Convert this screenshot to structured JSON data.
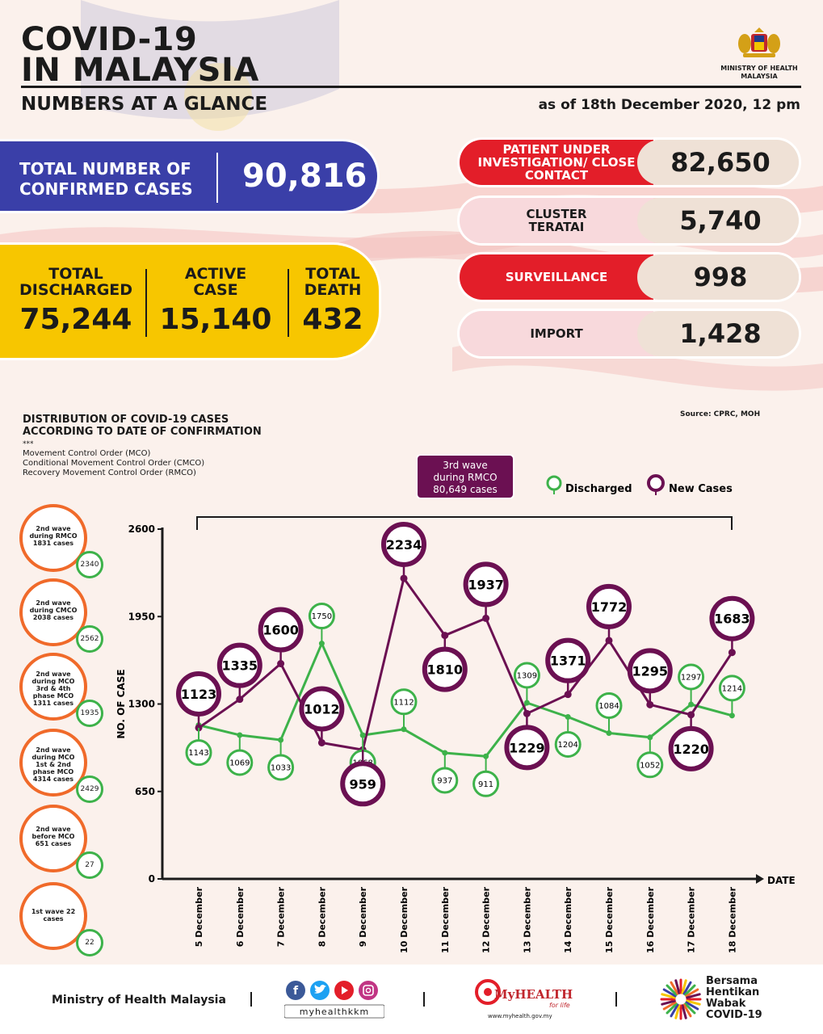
{
  "header": {
    "title_line1": "COVID-19",
    "title_line2": "IN MALAYSIA",
    "subtitle": "NUMBERS AT A GLANCE",
    "as_of": "as of 18th December 2020, 12 pm",
    "ministry_line1": "MINISTRY OF HEALTH",
    "ministry_line2": "MALAYSIA"
  },
  "totals": {
    "confirmed_label_line1": "TOTAL NUMBER OF",
    "confirmed_label_line2": "CONFIRMED CASES",
    "confirmed_value": "90,816",
    "discharged_label_line1": "TOTAL",
    "discharged_label_line2": "DISCHARGED",
    "discharged_value": "75,244",
    "active_label_line1": "ACTIVE",
    "active_label_line2": "CASE",
    "active_value": "15,140",
    "death_label_line1": "TOTAL",
    "death_label_line2": "DEATH",
    "death_value": "432"
  },
  "categories": [
    {
      "label": "PATIENT UNDER INVESTIGATION/ CLOSE CONTACT",
      "value": "82,650",
      "style": "red"
    },
    {
      "label": "CLUSTER TERATAI",
      "value": "5,740",
      "style": "pink"
    },
    {
      "label": "SURVEILLANCE",
      "value": "998",
      "style": "red"
    },
    {
      "label": "IMPORT",
      "value": "1,428",
      "style": "pink"
    }
  ],
  "chart_info": {
    "title_line1": "DISTRIBUTION OF COVID-19 CASES",
    "title_line2": "ACCORDING TO DATE OF CONFIRMATION",
    "stars": "***",
    "mco": "Movement Control Order (MCO)",
    "cmco": "Conditional Movement Control Order (CMCO)",
    "rmco": "Recovery Movement Control Order (RMCO)",
    "source": "Source: CPRC, MOH",
    "wave_line1": "3rd wave",
    "wave_line2": "during RMCO",
    "wave_line3": "80,649 cases"
  },
  "waves": [
    {
      "text": "2nd wave during RMCO 1831 cases",
      "value": "2340"
    },
    {
      "text": "2nd wave during CMCO 2038 cases",
      "value": "2562"
    },
    {
      "text": "2nd wave during MCO 3rd & 4th phase MCO 1311 cases",
      "value": "1935"
    },
    {
      "text": "2nd wave during MCO 1st & 2nd phase MCO 4314 cases",
      "value": "2429"
    },
    {
      "text": "2nd wave before MCO 651 cases",
      "value": "27"
    },
    {
      "text": "1st wave 22 cases",
      "value": "22"
    }
  ],
  "chart_data": {
    "type": "line",
    "x": [
      "5 December",
      "6 December",
      "7 December",
      "8 December",
      "9 December",
      "10 December",
      "11 December",
      "12 December",
      "13 December",
      "14 December",
      "15 December",
      "16 December",
      "17 December",
      "18 December"
    ],
    "series": [
      {
        "name": "Discharged",
        "color": "#3db24a",
        "values": [
          1143,
          1069,
          1033,
          1750,
          1068,
          1112,
          937,
          911,
          1309,
          1204,
          1084,
          1052,
          1297,
          1214
        ]
      },
      {
        "name": "New Cases",
        "color": "#6b1052",
        "values": [
          1123,
          1335,
          1600,
          1012,
          959,
          2234,
          1810,
          1937,
          1229,
          1371,
          1772,
          1295,
          1220,
          1683
        ]
      }
    ],
    "ylabel": "NO. OF CASE",
    "xlabel": "DATE",
    "yticks": [
      0,
      650,
      1300,
      1950,
      2600
    ],
    "ylim": [
      0,
      2600
    ]
  },
  "footer": {
    "ministry": "Ministry of Health Malaysia",
    "social_handle": "myhealthkkm",
    "myhealth": "MyHEALTH",
    "myhealth_tag": "for life",
    "myhealth_url": "www.myhealth.gov.my",
    "bersama_1": "Bersama",
    "bersama_2": "Hentikan",
    "bersama_3": "Wabak",
    "bersama_4": "COVID-19"
  },
  "colors": {
    "blue": "#3a3fa8",
    "yellow": "#f7c600",
    "red": "#e31e29",
    "pink": "#f8d9dc",
    "discharged": "#3db24a",
    "new_cases": "#6b1052",
    "wave_border": "#f06a2a"
  }
}
